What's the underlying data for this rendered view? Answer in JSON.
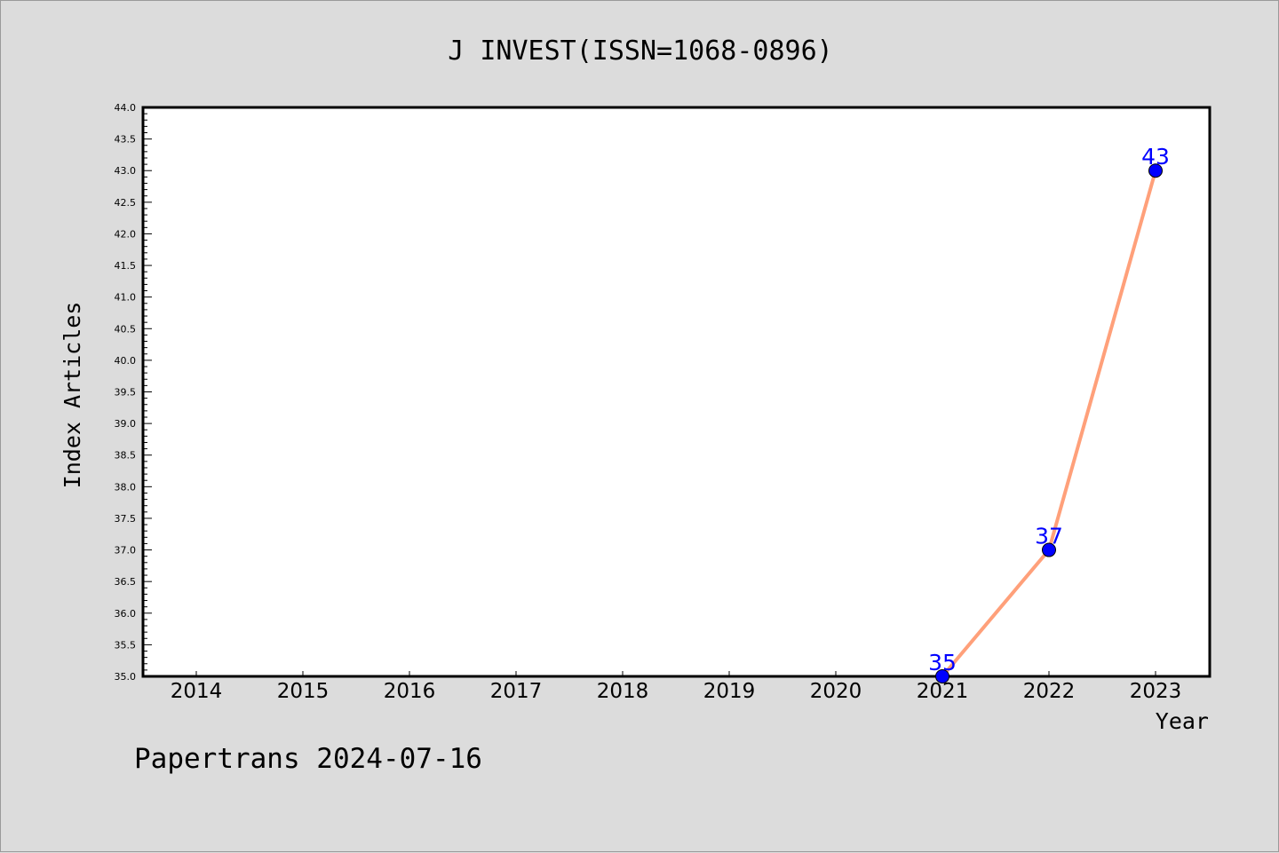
{
  "colors": {
    "background": "#dcdcdc",
    "plot_background": "#ffffff",
    "line": "#ffa07a",
    "marker": "#0000ff",
    "label": "#0000ff",
    "axis": "#000000"
  },
  "footer": {
    "text": "Papertrans 2024-07-16"
  },
  "chart_data": {
    "type": "line",
    "title": "J INVEST(ISSN=1068-0896)",
    "xlabel": "Year",
    "ylabel": "Index Articles",
    "categories": [
      "2014",
      "2015",
      "2016",
      "2017",
      "2018",
      "2019",
      "2020",
      "2021",
      "2022",
      "2023"
    ],
    "series": [
      {
        "x": [
          "2021",
          "2022",
          "2023"
        ],
        "values": [
          35,
          37,
          43
        ]
      }
    ],
    "data_labels": [
      "35",
      "37",
      "43"
    ],
    "ylim": [
      35.0,
      44.0
    ],
    "yticks": [
      "35.0",
      "35.5",
      "36.0",
      "36.5",
      "37.0",
      "37.5",
      "38.0",
      "38.5",
      "39.0",
      "39.5",
      "40.0",
      "40.5",
      "41.0",
      "41.5",
      "42.0",
      "42.5",
      "43.0",
      "43.5",
      "44.0"
    ],
    "grid": false,
    "legend": "none"
  }
}
